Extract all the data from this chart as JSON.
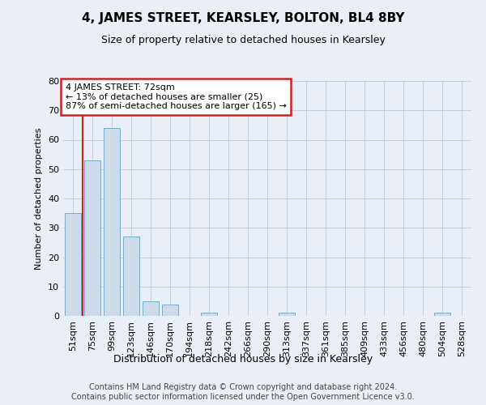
{
  "title": "4, JAMES STREET, KEARSLEY, BOLTON, BL4 8BY",
  "subtitle": "Size of property relative to detached houses in Kearsley",
  "xlabel": "Distribution of detached houses by size in Kearsley",
  "ylabel": "Number of detached properties",
  "footer_line1": "Contains HM Land Registry data © Crown copyright and database right 2024.",
  "footer_line2": "Contains public sector information licensed under the Open Government Licence v3.0.",
  "bin_labels": [
    "51sqm",
    "75sqm",
    "99sqm",
    "123sqm",
    "146sqm",
    "170sqm",
    "194sqm",
    "218sqm",
    "242sqm",
    "266sqm",
    "290sqm",
    "313sqm",
    "337sqm",
    "361sqm",
    "385sqm",
    "409sqm",
    "433sqm",
    "456sqm",
    "480sqm",
    "504sqm",
    "528sqm"
  ],
  "bar_values": [
    35,
    53,
    64,
    27,
    5,
    4,
    0,
    1,
    0,
    0,
    0,
    1,
    0,
    0,
    0,
    0,
    0,
    0,
    0,
    1,
    0
  ],
  "bar_color": "#ccdaea",
  "bar_edge_color": "#7aaac8",
  "grid_color": "#c5d0e0",
  "bg_color": "#eaeff7",
  "property_line_color": "#cc2222",
  "annotation_text": "4 JAMES STREET: 72sqm\n← 13% of detached houses are smaller (25)\n87% of semi-detached houses are larger (165) →",
  "annotation_box_color": "#cc2222",
  "ylim": [
    0,
    80
  ],
  "yticks": [
    0,
    10,
    20,
    30,
    40,
    50,
    60,
    70,
    80
  ],
  "title_fontsize": 11,
  "subtitle_fontsize": 9,
  "xlabel_fontsize": 9,
  "ylabel_fontsize": 8,
  "tick_fontsize": 8,
  "annotation_fontsize": 8,
  "footer_fontsize": 7
}
